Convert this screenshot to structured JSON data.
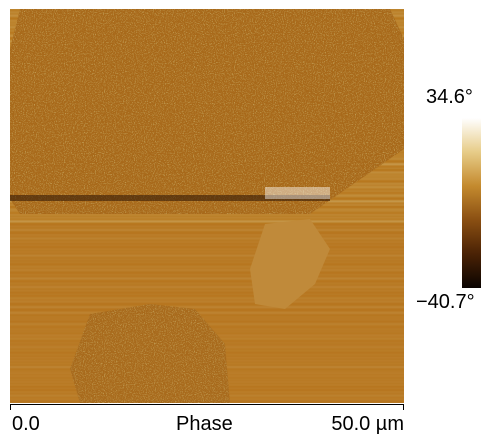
{
  "image": {
    "channel_label": "Phase",
    "scale_start": "0.0",
    "scale_end": "50.0 µm"
  },
  "colorbar": {
    "max_label": "34.6°",
    "min_label": "−40.7°",
    "stops": [
      "#ffffff",
      "#e7cc88",
      "#c48a2e",
      "#8a4f12",
      "#4a2205",
      "#0a0401"
    ]
  }
}
